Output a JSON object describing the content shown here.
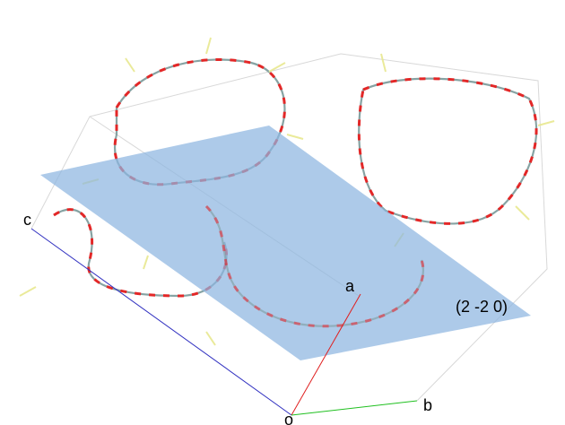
{
  "axes": {
    "c": "c",
    "a": "a",
    "b": "b",
    "origin": "o"
  },
  "plane": {
    "label": "(2 -2 0)"
  }
}
